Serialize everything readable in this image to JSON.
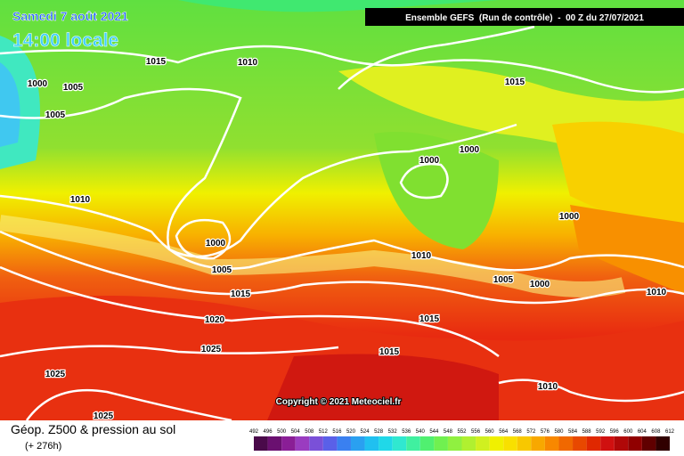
{
  "header": {
    "date": "Samedi 7 août 2021",
    "time": "14:00 locale",
    "run": "Ensemble GEFS  (Run de contrôle)  -  00 Z du 27/07/2021"
  },
  "isobar_labels": [
    "1015",
    "1010",
    "1000",
    "1005",
    "1005",
    "1015",
    "1000",
    "1000",
    "1010",
    "1000",
    "1000",
    "1010",
    "1005",
    "1005",
    "1000",
    "1015",
    "1010",
    "1020",
    "1015",
    "1025",
    "1015",
    "1025",
    "1010",
    "1025"
  ],
  "copyright": "Copyright © 2021 Meteociel.fr",
  "footer": {
    "title": "Géop. Z500 & pression au sol",
    "lead": "(+ 276h)"
  },
  "legend": {
    "labels": [
      "492",
      "496",
      "500",
      "504",
      "508",
      "512",
      "516",
      "520",
      "524",
      "528",
      "532",
      "536",
      "540",
      "544",
      "548",
      "552",
      "556",
      "560",
      "564",
      "568",
      "572",
      "576",
      "580",
      "584",
      "588",
      "592",
      "596",
      "600",
      "604",
      "608",
      "612"
    ],
    "colors": [
      "#4a0a4a",
      "#6a1070",
      "#8a1e96",
      "#9a3cc0",
      "#7a50d8",
      "#5a60e8",
      "#3a80f0",
      "#2aa0f0",
      "#20c0f0",
      "#20d8e8",
      "#30e8d0",
      "#40f0a0",
      "#50f070",
      "#70f050",
      "#90f040",
      "#b0f030",
      "#d0f020",
      "#f0f000",
      "#f8e000",
      "#f8c800",
      "#f8a800",
      "#f88800",
      "#f06800",
      "#e84800",
      "#e02800",
      "#d01010",
      "#b00808",
      "#900000",
      "#600000",
      "#300000"
    ]
  }
}
